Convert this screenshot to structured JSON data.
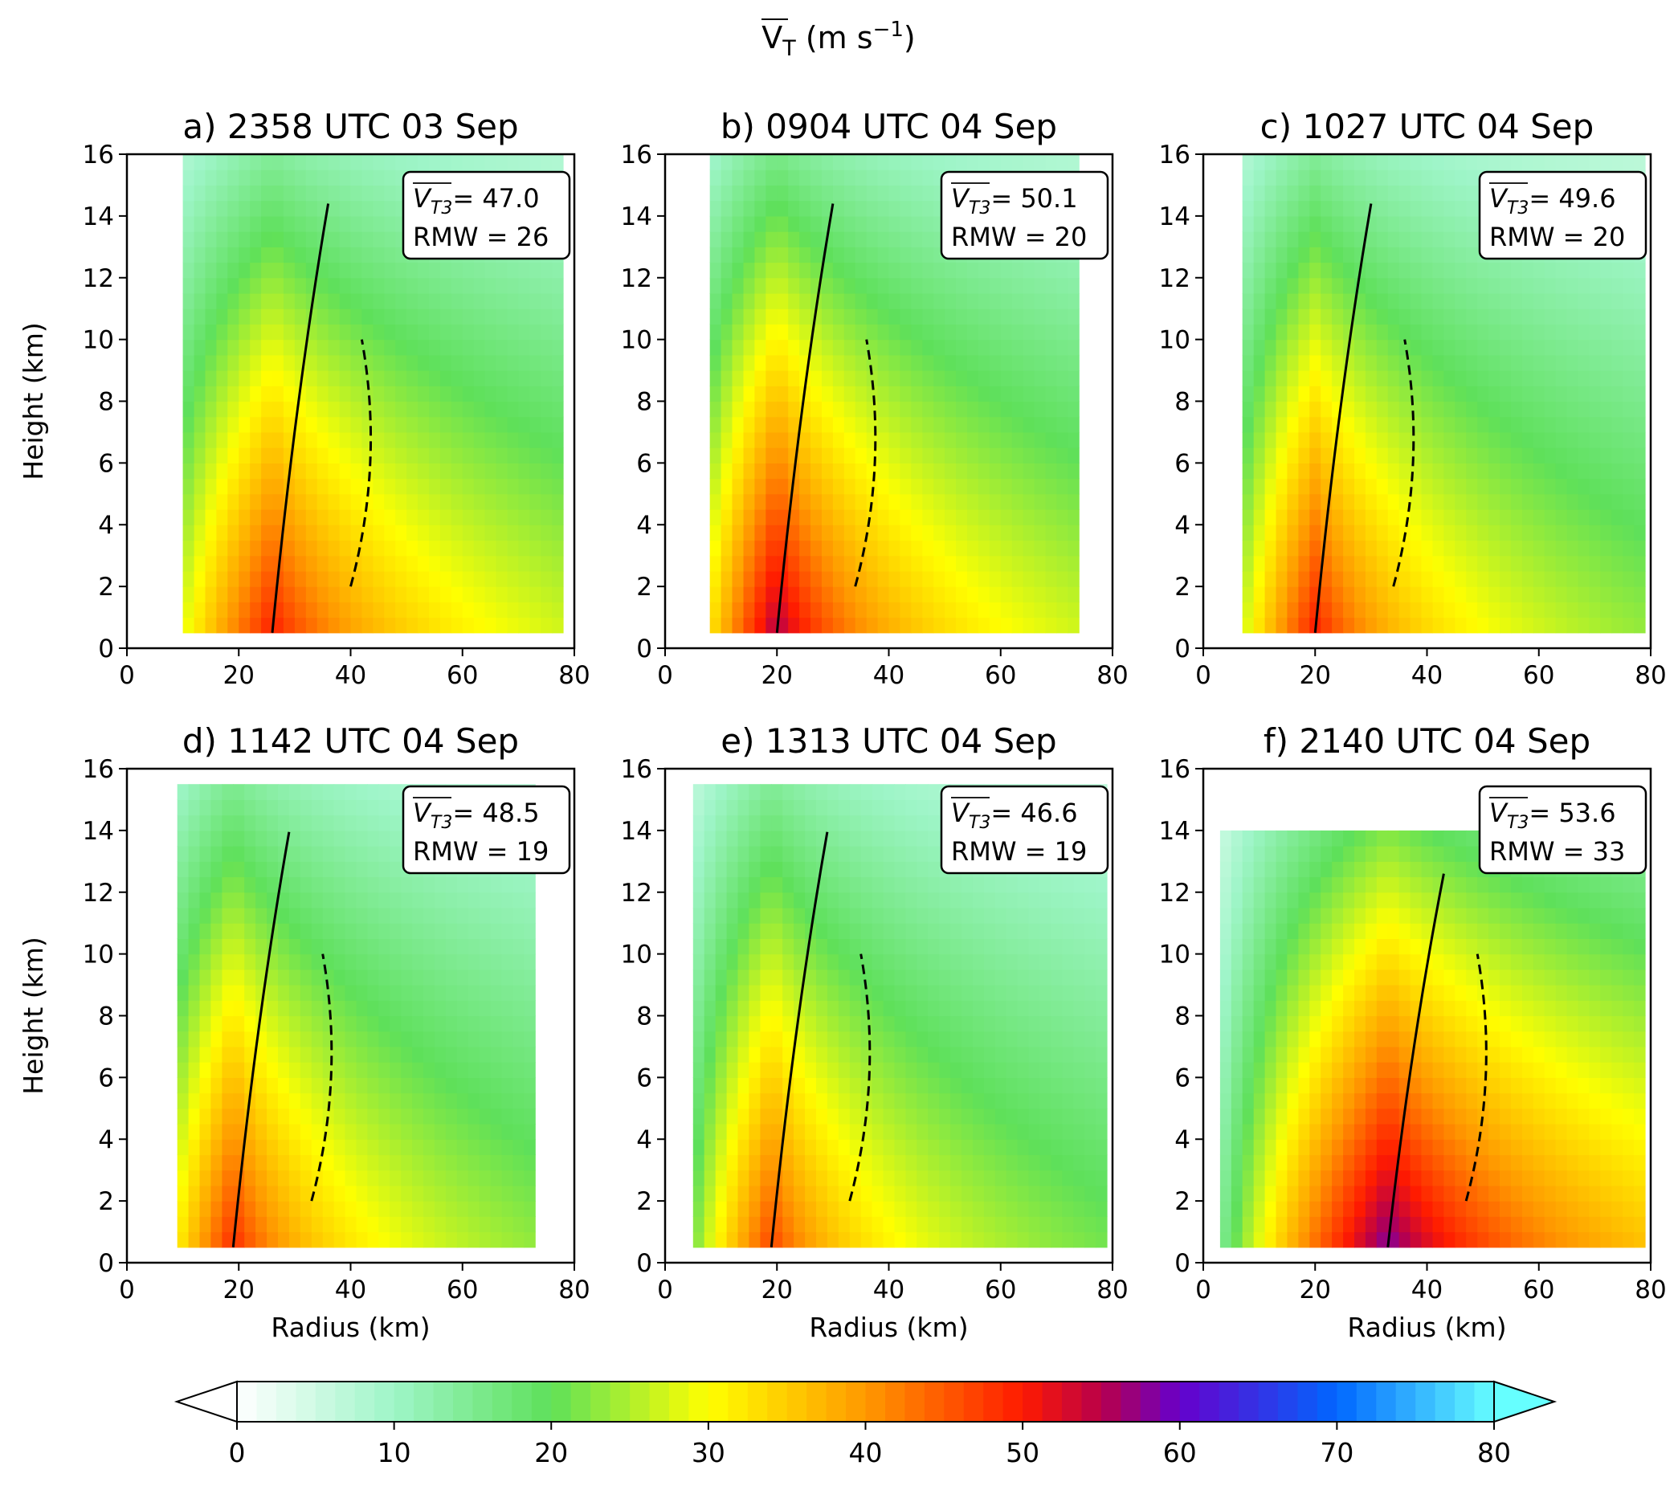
{
  "figure": {
    "title_main": "V",
    "title_sub": "T",
    "title_units_open": " (m s",
    "title_units_exp": "−1",
    "title_units_close": ")"
  },
  "chart_data": [
    {
      "type": "heatmap",
      "panel": "a",
      "title": "a) 2358 UTC 03 Sep",
      "xlabel": "",
      "ylabel": "Height (km)",
      "xlim": [
        0,
        80
      ],
      "ylim": [
        0,
        16
      ],
      "xticks": [
        "0",
        "20",
        "40",
        "60",
        "80"
      ],
      "yticks": [
        "0",
        "2",
        "4",
        "6",
        "8",
        "10",
        "12",
        "14",
        "16"
      ],
      "legend_position": "top-right",
      "vt3_label": "V",
      "vt3_sub": "T3",
      "vt3_value": "= 47.0",
      "rmw_text": "RMW = 26",
      "rmw_km": 26,
      "vt3_ms": 47.0,
      "peak_ms": 51,
      "domain_km": {
        "r_min": 10,
        "r_max": 78,
        "z_max": 16
      }
    },
    {
      "type": "heatmap",
      "panel": "b",
      "title": "b) 0904 UTC 04 Sep",
      "xlabel": "",
      "ylabel": "",
      "xlim": [
        0,
        80
      ],
      "ylim": [
        0,
        16
      ],
      "xticks": [
        "0",
        "20",
        "40",
        "60",
        "80"
      ],
      "yticks": [
        "0",
        "2",
        "4",
        "6",
        "8",
        "10",
        "12",
        "14",
        "16"
      ],
      "legend_position": "top-right",
      "vt3_label": "V",
      "vt3_sub": "T3",
      "vt3_value": "= 50.1",
      "rmw_text": "RMW = 20",
      "rmw_km": 20,
      "vt3_ms": 50.1,
      "peak_ms": 57,
      "domain_km": {
        "r_min": 8,
        "r_max": 73,
        "z_max": 16
      }
    },
    {
      "type": "heatmap",
      "panel": "c",
      "title": "c) 1027 UTC 04 Sep",
      "xlabel": "",
      "ylabel": "",
      "xlim": [
        0,
        80
      ],
      "ylim": [
        0,
        16
      ],
      "xticks": [
        "0",
        "20",
        "40",
        "60",
        "80"
      ],
      "yticks": [
        "0",
        "2",
        "4",
        "6",
        "8",
        "10",
        "12",
        "14",
        "16"
      ],
      "legend_position": "top-right",
      "vt3_label": "V",
      "vt3_sub": "T3",
      "vt3_value": "= 49.6",
      "rmw_text": "RMW = 20",
      "rmw_km": 20,
      "vt3_ms": 49.6,
      "peak_ms": 51,
      "domain_km": {
        "r_min": 7,
        "r_max": 78,
        "z_max": 16
      }
    },
    {
      "type": "heatmap",
      "panel": "d",
      "title": "d) 1142 UTC 04 Sep",
      "xlabel": "Radius (km)",
      "ylabel": "Height (km)",
      "xlim": [
        0,
        80
      ],
      "ylim": [
        0,
        16
      ],
      "xticks": [
        "0",
        "20",
        "40",
        "60",
        "80"
      ],
      "yticks": [
        "0",
        "2",
        "4",
        "6",
        "8",
        "10",
        "12",
        "14",
        "16"
      ],
      "legend_position": "top-right",
      "vt3_label": "V",
      "vt3_sub": "T3",
      "vt3_value": "= 48.5",
      "rmw_text": "RMW = 19",
      "rmw_km": 19,
      "vt3_ms": 48.5,
      "peak_ms": 50,
      "domain_km": {
        "r_min": 9,
        "r_max": 73,
        "z_max": 15.5
      }
    },
    {
      "type": "heatmap",
      "panel": "e",
      "title": "e) 1313 UTC 04 Sep",
      "xlabel": "Radius (km)",
      "ylabel": "",
      "xlim": [
        0,
        80
      ],
      "ylim": [
        0,
        16
      ],
      "xticks": [
        "0",
        "20",
        "40",
        "60",
        "80"
      ],
      "yticks": [
        "0",
        "2",
        "4",
        "6",
        "8",
        "10",
        "12",
        "14",
        "16"
      ],
      "legend_position": "top-right",
      "vt3_label": "V",
      "vt3_sub": "T3",
      "vt3_value": "= 46.6",
      "rmw_text": "RMW = 19",
      "rmw_km": 19,
      "vt3_ms": 46.6,
      "peak_ms": 48,
      "domain_km": {
        "r_min": 5,
        "r_max": 79,
        "z_max": 15.5
      }
    },
    {
      "type": "heatmap",
      "panel": "f",
      "title": "f) 2140 UTC 04 Sep",
      "xlabel": "Radius (km)",
      "ylabel": "",
      "xlim": [
        0,
        80
      ],
      "ylim": [
        0,
        16
      ],
      "xticks": [
        "0",
        "20",
        "40",
        "60",
        "80"
      ],
      "yticks": [
        "0",
        "2",
        "4",
        "6",
        "8",
        "10",
        "12",
        "14",
        "16"
      ],
      "legend_position": "top-right",
      "vt3_label": "V",
      "vt3_sub": "T3",
      "vt3_value": "= 53.6",
      "rmw_text": "RMW = 33",
      "rmw_km": 33,
      "vt3_ms": 53.6,
      "peak_ms": 60,
      "domain_km": {
        "r_min": 3,
        "r_max": 78,
        "z_max": 14
      }
    }
  ],
  "colorbar": {
    "min": 0,
    "max": 80,
    "ticks": [
      "0",
      "10",
      "20",
      "30",
      "40",
      "50",
      "60",
      "70",
      "80"
    ],
    "extend": "both",
    "stops": [
      {
        "v": 0,
        "c": "#ffffff"
      },
      {
        "v": 10,
        "c": "#9ef5c8"
      },
      {
        "v": 20,
        "c": "#5ee05a"
      },
      {
        "v": 30,
        "c": "#ffff00"
      },
      {
        "v": 40,
        "c": "#ff9900"
      },
      {
        "v": 50,
        "c": "#ff1a00"
      },
      {
        "v": 55,
        "c": "#b8004a"
      },
      {
        "v": 60,
        "c": "#6600cc"
      },
      {
        "v": 70,
        "c": "#0066ff"
      },
      {
        "v": 80,
        "c": "#66ffff"
      }
    ]
  }
}
